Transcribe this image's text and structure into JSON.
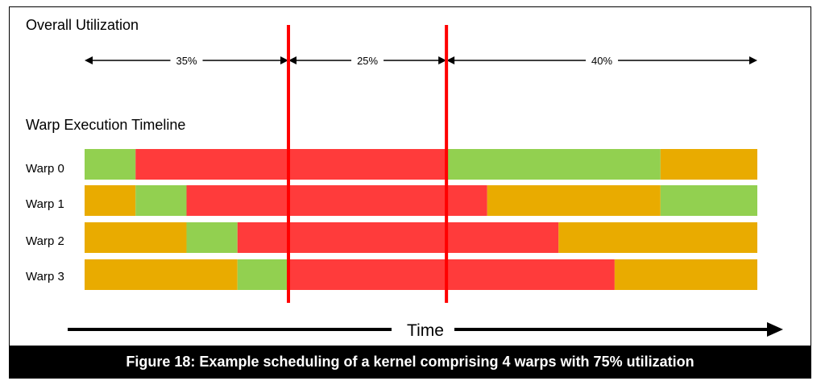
{
  "overall_utilization_label": "Overall Utilization",
  "timeline_label": "Warp Execution Timeline",
  "time_label": "Time",
  "caption": "Figure 18: Example scheduling of a kernel comprising 4 warps with 75% utilization",
  "utilization_segments": [
    {
      "label": "35%",
      "start": 0,
      "end": 4
    },
    {
      "label": "25%",
      "start": 4,
      "end": 7.1
    },
    {
      "label": "40%",
      "start": 7.1,
      "end": 13.2
    }
  ],
  "markers": [
    4,
    7.1
  ],
  "time_range": [
    0,
    13.2
  ],
  "colors": {
    "green": "#92d050",
    "red": "#ff3b3b",
    "orange": "#e9ab00",
    "marker": "#ff0000"
  },
  "warps": [
    {
      "name": "Warp 0",
      "segments": [
        {
          "state": "green",
          "start": 0,
          "end": 1
        },
        {
          "state": "red",
          "start": 1,
          "end": 7.1
        },
        {
          "state": "green",
          "start": 7.1,
          "end": 11.3
        },
        {
          "state": "orange",
          "start": 11.3,
          "end": 13.2
        }
      ]
    },
    {
      "name": "Warp 1",
      "segments": [
        {
          "state": "orange",
          "start": 0,
          "end": 1
        },
        {
          "state": "green",
          "start": 1,
          "end": 2
        },
        {
          "state": "red",
          "start": 2,
          "end": 7.9
        },
        {
          "state": "orange",
          "start": 7.9,
          "end": 11.3
        },
        {
          "state": "green",
          "start": 11.3,
          "end": 13.2
        }
      ]
    },
    {
      "name": "Warp 2",
      "segments": [
        {
          "state": "orange",
          "start": 0,
          "end": 2
        },
        {
          "state": "green",
          "start": 2,
          "end": 3
        },
        {
          "state": "red",
          "start": 3,
          "end": 9.3
        },
        {
          "state": "orange",
          "start": 9.3,
          "end": 13.2
        }
      ]
    },
    {
      "name": "Warp 3",
      "segments": [
        {
          "state": "orange",
          "start": 0,
          "end": 3
        },
        {
          "state": "green",
          "start": 3,
          "end": 4
        },
        {
          "state": "red",
          "start": 4,
          "end": 10.4
        },
        {
          "state": "orange",
          "start": 10.4,
          "end": 13.2
        }
      ]
    }
  ]
}
